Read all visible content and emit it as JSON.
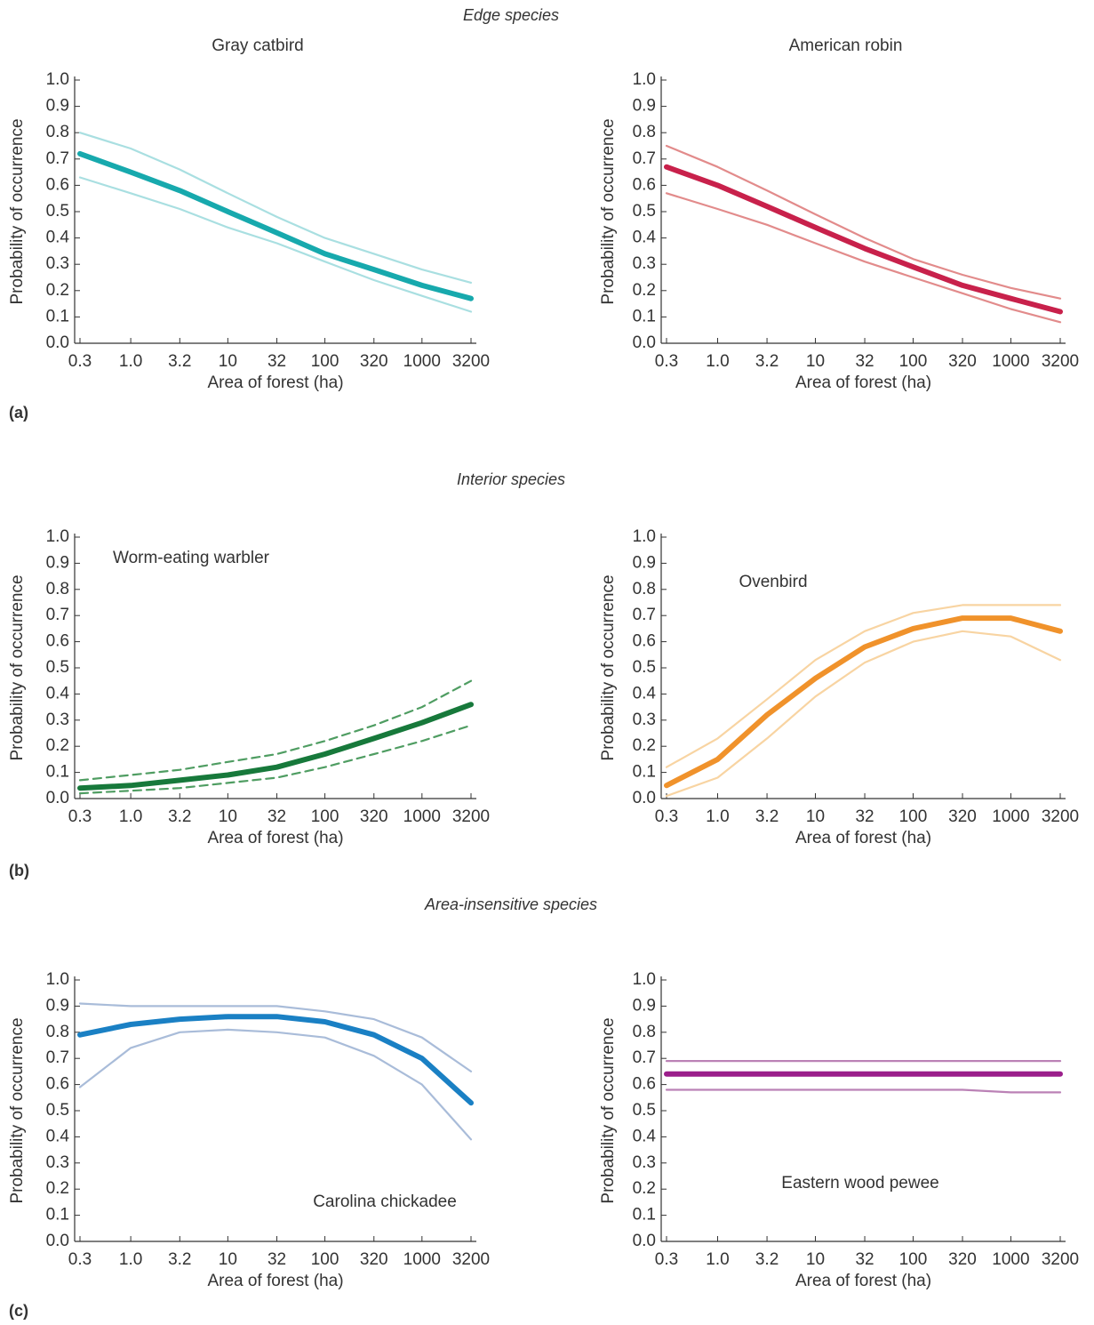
{
  "sections": [
    {
      "title": "Edge species",
      "label": "(a)"
    },
    {
      "title": "Interior species",
      "label": "(b)"
    },
    {
      "title": "Area-insensitive species",
      "label": "(c)"
    }
  ],
  "chart_data": [
    {
      "type": "line",
      "title": "Gray catbird",
      "xlabel": "Area of forest (ha)",
      "ylabel": "Probability of occurrence",
      "xscale": "log",
      "x": [
        0.3,
        1,
        3.2,
        10,
        32,
        100,
        320,
        1000,
        3200
      ],
      "xlim": [
        0.3,
        3200
      ],
      "xticks": [
        0.3,
        {
          "value": 1,
          "label": "1.0"
        },
        3.2,
        10,
        32,
        100,
        320,
        1000,
        3200
      ],
      "ylim": [
        0,
        1
      ],
      "yticks": [
        {
          "value": 0,
          "label": "0.0"
        },
        0.1,
        0.2,
        0.3,
        0.4,
        0.5,
        0.6,
        0.7,
        0.8,
        0.9,
        {
          "value": 1,
          "label": "1.0"
        }
      ],
      "series": [
        {
          "color": "#17a9ad",
          "values": [
            0.72,
            0.65,
            0.58,
            0.5,
            0.42,
            0.34,
            0.28,
            0.22,
            0.17
          ]
        },
        {
          "color": "#a9dfe1",
          "values": [
            0.8,
            0.74,
            0.66,
            0.57,
            0.48,
            0.4,
            0.34,
            0.28,
            0.23
          ]
        },
        {
          "color": "#a9dfe1",
          "values": [
            0.63,
            0.57,
            0.51,
            0.44,
            0.38,
            0.31,
            0.24,
            0.18,
            0.12
          ]
        }
      ]
    },
    {
      "type": "line",
      "title": "American robin",
      "xlabel": "Area of forest (ha)",
      "ylabel": "Probability of occurrence",
      "xscale": "log",
      "x": [
        0.3,
        1,
        3.2,
        10,
        32,
        100,
        320,
        1000,
        3200
      ],
      "xlim": [
        0.3,
        3200
      ],
      "xticks": [
        0.3,
        {
          "value": 1,
          "label": "1.0"
        },
        3.2,
        10,
        32,
        100,
        320,
        1000,
        3200
      ],
      "ylim": [
        0,
        1
      ],
      "yticks": [
        {
          "value": 0,
          "label": "0.0"
        },
        0.1,
        0.2,
        0.3,
        0.4,
        0.5,
        0.6,
        0.7,
        0.8,
        0.9,
        {
          "value": 1,
          "label": "1.0"
        }
      ],
      "series": [
        {
          "color": "#c8214b",
          "values": [
            0.67,
            0.6,
            0.52,
            0.44,
            0.36,
            0.29,
            0.22,
            0.17,
            0.12
          ]
        },
        {
          "color": "#e28b8b",
          "values": [
            0.75,
            0.67,
            0.58,
            0.49,
            0.4,
            0.32,
            0.26,
            0.21,
            0.17
          ]
        },
        {
          "color": "#e28b8b",
          "values": [
            0.57,
            0.51,
            0.45,
            0.38,
            0.31,
            0.25,
            0.19,
            0.13,
            0.08
          ]
        }
      ]
    },
    {
      "type": "line",
      "annotation": "Worm-eating warbler",
      "xlabel": "Area of forest (ha)",
      "ylabel": "Probability of occurrence",
      "xscale": "log",
      "x": [
        0.3,
        1,
        3.2,
        10,
        32,
        100,
        320,
        1000,
        3200
      ],
      "xlim": [
        0.3,
        3200
      ],
      "xticks": [
        0.3,
        {
          "value": 1,
          "label": "1.0"
        },
        3.2,
        10,
        32,
        100,
        320,
        1000,
        3200
      ],
      "ylim": [
        0,
        1
      ],
      "yticks": [
        {
          "value": 0,
          "label": "0.0"
        },
        0.1,
        0.2,
        0.3,
        0.4,
        0.5,
        0.6,
        0.7,
        0.8,
        0.9,
        {
          "value": 1,
          "label": "1.0"
        }
      ],
      "series": [
        {
          "color": "#17793b",
          "values": [
            0.04,
            0.05,
            0.07,
            0.09,
            0.12,
            0.17,
            0.23,
            0.29,
            0.36
          ]
        },
        {
          "color": "#4f9d62",
          "dashed": true,
          "values": [
            0.07,
            0.09,
            0.11,
            0.14,
            0.17,
            0.22,
            0.28,
            0.35,
            0.45
          ]
        },
        {
          "color": "#4f9d62",
          "dashed": true,
          "values": [
            0.02,
            0.03,
            0.04,
            0.06,
            0.08,
            0.12,
            0.17,
            0.22,
            0.28
          ]
        }
      ]
    },
    {
      "type": "line",
      "annotation": "Ovenbird",
      "xlabel": "Area of forest (ha)",
      "ylabel": "Probability of occurrence",
      "xscale": "log",
      "x": [
        0.3,
        1,
        3.2,
        10,
        32,
        100,
        320,
        1000,
        3200
      ],
      "xlim": [
        0.3,
        3200
      ],
      "xticks": [
        0.3,
        {
          "value": 1,
          "label": "1.0"
        },
        3.2,
        10,
        32,
        100,
        320,
        1000,
        3200
      ],
      "ylim": [
        0,
        1
      ],
      "yticks": [
        {
          "value": 0,
          "label": "0.0"
        },
        0.1,
        0.2,
        0.3,
        0.4,
        0.5,
        0.6,
        0.7,
        0.8,
        0.9,
        {
          "value": 1,
          "label": "1.0"
        }
      ],
      "series": [
        {
          "color": "#f0922b",
          "values": [
            0.05,
            0.15,
            0.32,
            0.46,
            0.58,
            0.65,
            0.69,
            0.69,
            0.64
          ]
        },
        {
          "color": "#f8d4a2",
          "values": [
            0.12,
            0.23,
            0.38,
            0.53,
            0.64,
            0.71,
            0.74,
            0.74,
            0.74
          ]
        },
        {
          "color": "#f8d4a2",
          "values": [
            0.01,
            0.08,
            0.23,
            0.39,
            0.52,
            0.6,
            0.64,
            0.62,
            0.53
          ]
        }
      ]
    },
    {
      "type": "line",
      "annotation": "Carolina chickadee",
      "xlabel": "Area of forest (ha)",
      "ylabel": "Probability of occurrence",
      "xscale": "log",
      "x": [
        0.3,
        1,
        3.2,
        10,
        32,
        100,
        320,
        1000,
        3200
      ],
      "xlim": [
        0.3,
        3200
      ],
      "xticks": [
        0.3,
        {
          "value": 1,
          "label": "1.0"
        },
        3.2,
        10,
        32,
        100,
        320,
        1000,
        3200
      ],
      "ylim": [
        0,
        1
      ],
      "yticks": [
        {
          "value": 0,
          "label": "0.0"
        },
        0.1,
        0.2,
        0.3,
        0.4,
        0.5,
        0.6,
        0.7,
        0.8,
        0.9,
        {
          "value": 1,
          "label": "1.0"
        }
      ],
      "series": [
        {
          "color": "#1a80c4",
          "values": [
            0.79,
            0.83,
            0.85,
            0.86,
            0.86,
            0.84,
            0.79,
            0.7,
            0.53
          ]
        },
        {
          "color": "#a9bcd9",
          "values": [
            0.91,
            0.9,
            0.9,
            0.9,
            0.9,
            0.88,
            0.85,
            0.78,
            0.65
          ]
        },
        {
          "color": "#a9bcd9",
          "values": [
            0.59,
            0.74,
            0.8,
            0.81,
            0.8,
            0.78,
            0.71,
            0.6,
            0.39
          ]
        }
      ]
    },
    {
      "type": "line",
      "annotation": "Eastern wood pewee",
      "xlabel": "Area of forest (ha)",
      "ylabel": "Probability of occurrence",
      "xscale": "log",
      "x": [
        0.3,
        1,
        3.2,
        10,
        32,
        100,
        320,
        1000,
        3200
      ],
      "xlim": [
        0.3,
        3200
      ],
      "xticks": [
        0.3,
        {
          "value": 1,
          "label": "1.0"
        },
        3.2,
        10,
        32,
        100,
        320,
        1000,
        3200
      ],
      "ylim": [
        0,
        1
      ],
      "yticks": [
        {
          "value": 0,
          "label": "0.0"
        },
        0.1,
        0.2,
        0.3,
        0.4,
        0.5,
        0.6,
        0.7,
        0.8,
        0.9,
        {
          "value": 1,
          "label": "1.0"
        }
      ],
      "series": [
        {
          "color": "#9b1f8b",
          "values": [
            0.64,
            0.64,
            0.64,
            0.64,
            0.64,
            0.64,
            0.64,
            0.64,
            0.64
          ]
        },
        {
          "color": "#bb82b6",
          "values": [
            0.69,
            0.69,
            0.69,
            0.69,
            0.69,
            0.69,
            0.69,
            0.69,
            0.69
          ]
        },
        {
          "color": "#bb82b6",
          "values": [
            0.58,
            0.58,
            0.58,
            0.58,
            0.58,
            0.58,
            0.58,
            0.57,
            0.57
          ]
        }
      ]
    }
  ]
}
